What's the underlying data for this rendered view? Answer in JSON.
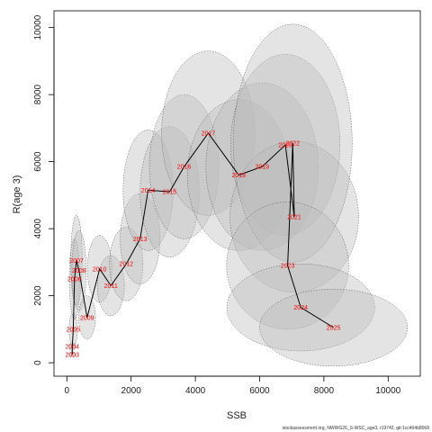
{
  "chart_data": {
    "type": "scatter",
    "xlabel": "SSB",
    "ylabel": "R(age 3)",
    "xlim": [
      -400,
      11000
    ],
    "ylim": [
      -400,
      10500
    ],
    "x_ticks": [
      0,
      2000,
      4000,
      6000,
      8000,
      10000
    ],
    "y_ticks": [
      0,
      2000,
      4000,
      6000,
      8000,
      10000
    ],
    "line_color": "#000000",
    "label_color": "#ff0000",
    "ellipse_fill": "#bbbbbb",
    "source_note": "stockassessment.org, NWWG26_S-WSC_age3, r19742, git:1cc464b8068",
    "points": [
      {
        "year": "2003",
        "ssb": 170,
        "rec": 250
      },
      {
        "year": "2004",
        "ssb": 170,
        "rec": 480
      },
      {
        "year": "2005",
        "ssb": 200,
        "rec": 1000
      },
      {
        "year": "2006",
        "ssb": 240,
        "rec": 2500
      },
      {
        "year": "2007",
        "ssb": 300,
        "rec": 3050
      },
      {
        "year": "2008",
        "ssb": 380,
        "rec": 2750
      },
      {
        "year": "2009",
        "ssb": 630,
        "rec": 1350
      },
      {
        "year": "2010",
        "ssb": 1020,
        "rec": 2800
      },
      {
        "year": "2011",
        "ssb": 1370,
        "rec": 2300
      },
      {
        "year": "2012",
        "ssb": 1850,
        "rec": 2950
      },
      {
        "year": "2013",
        "ssb": 2280,
        "rec": 3700
      },
      {
        "year": "2014",
        "ssb": 2530,
        "rec": 5150
      },
      {
        "year": "2015",
        "ssb": 3200,
        "rec": 5100
      },
      {
        "year": "2016",
        "ssb": 3650,
        "rec": 5850
      },
      {
        "year": "2017",
        "ssb": 4400,
        "rec": 6850
      },
      {
        "year": "2018",
        "ssb": 5350,
        "rec": 5600
      },
      {
        "year": "2019",
        "ssb": 6080,
        "rec": 5850
      },
      {
        "year": "2020",
        "ssb": 6800,
        "rec": 6500
      },
      {
        "year": "2021",
        "ssb": 7080,
        "rec": 4350
      },
      {
        "year": "2022",
        "ssb": 7030,
        "rec": 6550
      },
      {
        "year": "2023",
        "ssb": 6870,
        "rec": 2900
      },
      {
        "year": "2024",
        "ssb": 7280,
        "rec": 1650
      },
      {
        "year": "2025",
        "ssb": 8300,
        "rec": 1050
      }
    ],
    "ellipses": [
      {
        "year": "2003",
        "cx": 170,
        "cy": 250,
        "rx": 90,
        "ry": 80
      },
      {
        "year": "2004",
        "cx": 170,
        "cy": 480,
        "rx": 100,
        "ry": 120
      },
      {
        "year": "2005",
        "cx": 200,
        "cy": 1000,
        "rx": 130,
        "ry": 500
      },
      {
        "year": "2006",
        "cx": 240,
        "cy": 2500,
        "rx": 160,
        "ry": 1200
      },
      {
        "year": "2007",
        "cx": 300,
        "cy": 3050,
        "rx": 180,
        "ry": 1350
      },
      {
        "year": "2008",
        "cx": 380,
        "cy": 2750,
        "rx": 220,
        "ry": 1200
      },
      {
        "year": "2009",
        "cx": 630,
        "cy": 1350,
        "rx": 260,
        "ry": 650
      },
      {
        "year": "2010",
        "cx": 1020,
        "cy": 2800,
        "rx": 380,
        "ry": 1000
      },
      {
        "year": "2011",
        "cx": 1370,
        "cy": 2300,
        "rx": 420,
        "ry": 900
      },
      {
        "year": "2012",
        "cx": 1850,
        "cy": 2950,
        "rx": 520,
        "ry": 1100
      },
      {
        "year": "2013",
        "cx": 2280,
        "cy": 3700,
        "rx": 620,
        "ry": 1350
      },
      {
        "year": "2014",
        "cx": 2530,
        "cy": 5150,
        "rx": 780,
        "ry": 1800
      },
      {
        "year": "2015",
        "cx": 3200,
        "cy": 5100,
        "rx": 920,
        "ry": 1950
      },
      {
        "year": "2016",
        "cx": 3650,
        "cy": 5850,
        "rx": 1080,
        "ry": 2150
      },
      {
        "year": "2017",
        "cx": 4400,
        "cy": 6850,
        "rx": 1450,
        "ry": 2450
      },
      {
        "year": "2018",
        "cx": 5350,
        "cy": 5600,
        "rx": 1600,
        "ry": 2250
      },
      {
        "year": "2019",
        "cx": 6080,
        "cy": 5850,
        "rx": 1750,
        "ry": 2500
      },
      {
        "year": "2020",
        "cx": 6800,
        "cy": 6500,
        "rx": 1700,
        "ry": 2700
      },
      {
        "year": "2021",
        "cx": 7080,
        "cy": 4350,
        "rx": 2000,
        "ry": 2250
      },
      {
        "year": "2022",
        "cx": 7030,
        "cy": 6550,
        "rx": 1850,
        "ry": 3550
      },
      {
        "year": "2023",
        "cx": 6870,
        "cy": 2900,
        "rx": 1900,
        "ry": 1900
      },
      {
        "year": "2024",
        "cx": 7280,
        "cy": 1650,
        "rx": 2300,
        "ry": 1300
      },
      {
        "year": "2025",
        "cx": 8300,
        "cy": 1050,
        "rx": 2300,
        "ry": 1150
      }
    ]
  }
}
